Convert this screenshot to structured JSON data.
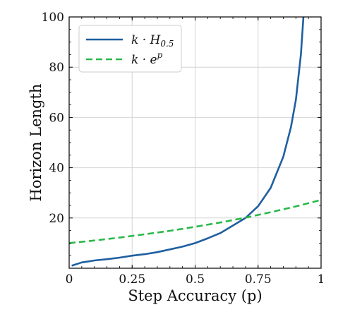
{
  "chart_data": {
    "type": "line",
    "xlabel": "Step Accuracy (p)",
    "ylabel": "Horizon Length",
    "xlim": [
      0,
      1
    ],
    "ylim": [
      0,
      100
    ],
    "xticks": [
      0,
      0.25,
      0.5,
      0.75,
      1
    ],
    "xtick_labels": [
      "0",
      "0.25",
      "0.5",
      "0.75",
      "1"
    ],
    "yticks": [
      20,
      40,
      60,
      80,
      100
    ],
    "ytick_labels": [
      "20",
      "40",
      "60",
      "80",
      "100"
    ],
    "grid": true,
    "legend_position": "top-left",
    "series": [
      {
        "name": "k·H0.5",
        "legend_main": "k · H",
        "legend_sub": "0.5",
        "color": "#1f5fa0",
        "style": "solid",
        "x": [
          0.01,
          0.05,
          0.1,
          0.15,
          0.2,
          0.25,
          0.3,
          0.35,
          0.4,
          0.45,
          0.5,
          0.55,
          0.6,
          0.65,
          0.7,
          0.75,
          0.8,
          0.85,
          0.88,
          0.9,
          0.92,
          0.93
        ],
        "y": [
          1.0,
          2.3,
          3.1,
          3.6,
          4.2,
          5.0,
          5.6,
          6.4,
          7.5,
          8.6,
          10.0,
          11.9,
          14.0,
          17.0,
          20.0,
          24.7,
          32.0,
          44.3,
          56.0,
          67.0,
          85.0,
          100.0
        ]
      },
      {
        "name": "k·e^p",
        "legend_main": "k · e",
        "legend_sup": "p",
        "color": "#2bb84a",
        "style": "dashed",
        "x": [
          0,
          0.1,
          0.2,
          0.3,
          0.4,
          0.5,
          0.6,
          0.7,
          0.8,
          0.9,
          1.0
        ],
        "y": [
          10.0,
          11.05,
          12.2,
          13.5,
          14.9,
          16.5,
          18.2,
          20.1,
          22.3,
          24.6,
          27.2
        ]
      }
    ]
  }
}
